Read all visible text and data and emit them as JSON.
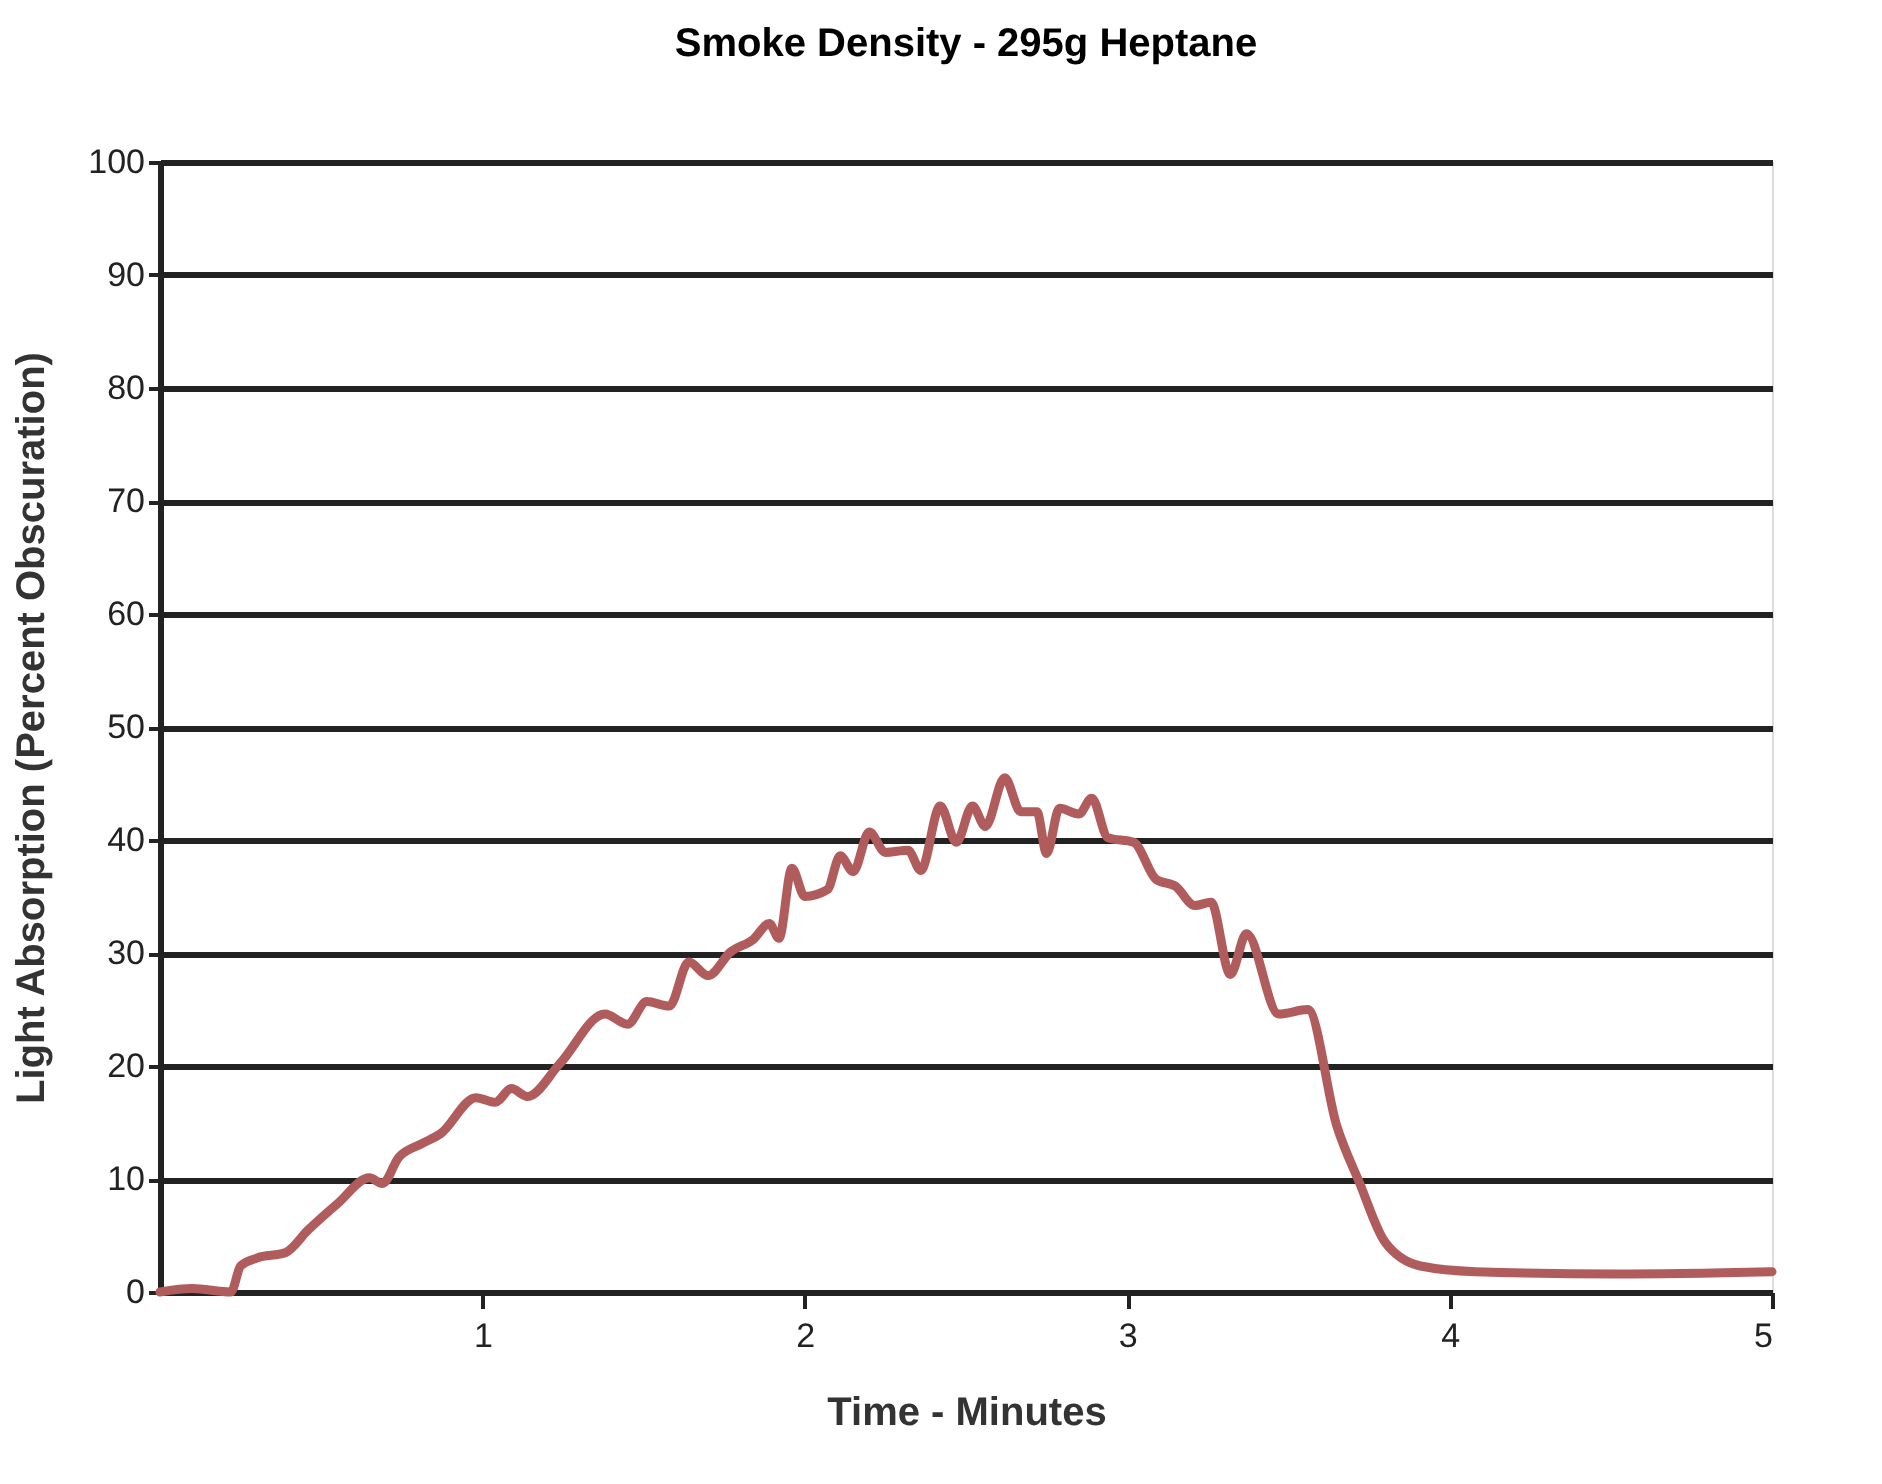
{
  "chart_data": {
    "type": "line",
    "title": "Smoke Density - 295g Heptane",
    "xlabel": "Time - Minutes",
    "ylabel": "Light Absorption (Percent Obscuration)",
    "x": [
      0,
      0.1,
      0.22,
      0.25,
      0.3,
      0.39,
      0.46,
      0.55,
      0.65,
      0.69,
      0.74,
      0.81,
      0.87,
      0.98,
      1.04,
      1.09,
      1.14,
      1.24,
      1.38,
      1.45,
      1.51,
      1.58,
      1.64,
      1.7,
      1.77,
      1.84,
      1.89,
      1.92,
      1.96,
      2.0,
      2.07,
      2.11,
      2.15,
      2.2,
      2.25,
      2.32,
      2.36,
      2.42,
      2.47,
      2.52,
      2.56,
      2.62,
      2.67,
      2.72,
      2.75,
      2.79,
      2.85,
      2.89,
      2.94,
      3.02,
      3.09,
      3.15,
      3.21,
      3.26,
      3.32,
      3.37,
      3.47,
      3.56,
      3.65,
      3.72,
      3.8,
      3.91,
      4.08,
      4.52,
      5.0
    ],
    "series": [
      {
        "color": "#b05c5c",
        "values": [
          0,
          0.3,
          0,
          2.3,
          3,
          3.5,
          5.5,
          7.8,
          10.1,
          9.6,
          11.9,
          13.1,
          14,
          17.2,
          16.8,
          18,
          17.3,
          20.2,
          24.6,
          23.7,
          25.7,
          25.3,
          29.2,
          28,
          30.1,
          31.2,
          32.6,
          31.3,
          37.5,
          35,
          35.6,
          38.6,
          37.2,
          40.7,
          38.9,
          39.1,
          37.3,
          43,
          39.8,
          43,
          41.2,
          45.5,
          42.5,
          42.5,
          38.8,
          42.8,
          42.3,
          43.7,
          40.2,
          39.8,
          36.5,
          35.9,
          34.2,
          34.5,
          28.1,
          31.7,
          24.6,
          25,
          14.7,
          9.7,
          4.4,
          2.3,
          1.8,
          1.6,
          1.8
        ]
      }
    ],
    "xlim": [
      0,
      5
    ],
    "xticks": [
      1,
      2,
      3,
      4,
      5
    ],
    "ylim": [
      0,
      100
    ],
    "yticks": [
      0,
      10,
      20,
      30,
      40,
      50,
      60,
      70,
      80,
      90,
      100
    ],
    "grid": "y",
    "legend": false,
    "marker": "none",
    "line_style": "solid"
  }
}
